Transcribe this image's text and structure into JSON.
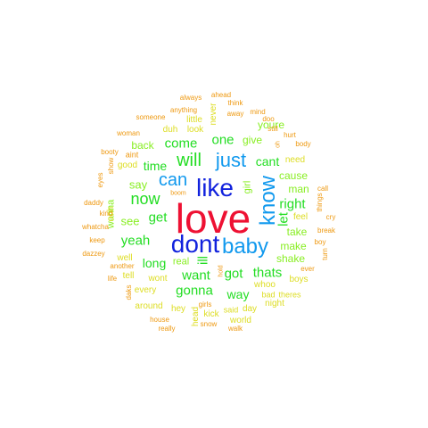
{
  "colors": {
    "red": "#ee1133",
    "blue": "#1122dd",
    "sky": "#1199ee",
    "green": "#22dd22",
    "lime": "#88ee22",
    "yellow": "#dddd22",
    "orange": "#ee9911",
    "dark_orange": "#dd7711"
  },
  "words": [
    {
      "text": "love",
      "color": "red"
    },
    {
      "text": "dont",
      "color": "blue"
    },
    {
      "text": "baby",
      "color": "sky"
    },
    {
      "text": "like",
      "color": "blue"
    },
    {
      "text": "just",
      "color": "sky"
    },
    {
      "text": "know",
      "color": "sky"
    },
    {
      "text": "can",
      "color": "sky"
    },
    {
      "text": "will",
      "color": "green"
    },
    {
      "text": "now",
      "color": "green"
    },
    {
      "text": "come",
      "color": "green"
    },
    {
      "text": "one",
      "color": "green"
    },
    {
      "text": "yeah",
      "color": "green"
    },
    {
      "text": "get",
      "color": "green"
    },
    {
      "text": "gonna",
      "color": "green"
    },
    {
      "text": "want",
      "color": "green"
    },
    {
      "text": "got",
      "color": "green"
    },
    {
      "text": "thats",
      "color": "green"
    },
    {
      "text": "right",
      "color": "green"
    },
    {
      "text": "let",
      "color": "green"
    },
    {
      "text": "ill",
      "color": "green"
    },
    {
      "text": "time",
      "color": "green"
    },
    {
      "text": "long",
      "color": "green"
    },
    {
      "text": "way",
      "color": "green"
    },
    {
      "text": "cant",
      "color": "green"
    },
    {
      "text": "say",
      "color": "lime"
    },
    {
      "text": "see",
      "color": "lime"
    },
    {
      "text": "make",
      "color": "lime"
    },
    {
      "text": "man",
      "color": "lime"
    },
    {
      "text": "give",
      "color": "lime"
    },
    {
      "text": "back",
      "color": "lime"
    },
    {
      "text": "cause",
      "color": "lime"
    },
    {
      "text": "youre",
      "color": "lime"
    },
    {
      "text": "take",
      "color": "lime"
    },
    {
      "text": "shake",
      "color": "lime"
    },
    {
      "text": "wanna",
      "color": "lime"
    },
    {
      "text": "girl",
      "color": "lime"
    },
    {
      "text": "real",
      "color": "lime"
    },
    {
      "text": "well",
      "color": "yellow"
    },
    {
      "text": "tell",
      "color": "yellow"
    },
    {
      "text": "feel",
      "color": "yellow"
    },
    {
      "text": "every",
      "color": "yellow"
    },
    {
      "text": "wont",
      "color": "yellow"
    },
    {
      "text": "need",
      "color": "yellow"
    },
    {
      "text": "whoo",
      "color": "yellow"
    },
    {
      "text": "little",
      "color": "yellow"
    },
    {
      "text": "never",
      "color": "yellow"
    },
    {
      "text": "duh",
      "color": "yellow"
    },
    {
      "text": "look",
      "color": "yellow"
    },
    {
      "text": "good",
      "color": "yellow"
    },
    {
      "text": "ooh",
      "color": "yellow"
    },
    {
      "text": "night",
      "color": "yellow"
    },
    {
      "text": "boys",
      "color": "yellow"
    },
    {
      "text": "around",
      "color": "yellow"
    },
    {
      "text": "hey",
      "color": "yellow"
    },
    {
      "text": "kick",
      "color": "yellow"
    },
    {
      "text": "head",
      "color": "yellow"
    },
    {
      "text": "world",
      "color": "yellow"
    },
    {
      "text": "day",
      "color": "yellow"
    },
    {
      "text": "theres",
      "color": "yellow"
    },
    {
      "text": "bad",
      "color": "yellow"
    },
    {
      "text": "said",
      "color": "yellow"
    },
    {
      "text": "ever",
      "color": "orange"
    },
    {
      "text": "boy",
      "color": "orange"
    },
    {
      "text": "turn",
      "color": "orange"
    },
    {
      "text": "break",
      "color": "orange"
    },
    {
      "text": "cry",
      "color": "orange"
    },
    {
      "text": "call",
      "color": "orange"
    },
    {
      "text": "things",
      "color": "orange"
    },
    {
      "text": "body",
      "color": "orange"
    },
    {
      "text": "hurt",
      "color": "orange"
    },
    {
      "text": "still",
      "color": "orange"
    },
    {
      "text": "doo",
      "color": "orange"
    },
    {
      "text": "mind",
      "color": "orange"
    },
    {
      "text": "away",
      "color": "orange"
    },
    {
      "text": "think",
      "color": "orange"
    },
    {
      "text": "ahead",
      "color": "orange"
    },
    {
      "text": "always",
      "color": "orange"
    },
    {
      "text": "anything",
      "color": "orange"
    },
    {
      "text": "someone",
      "color": "orange"
    },
    {
      "text": "woman",
      "color": "orange"
    },
    {
      "text": "booty",
      "color": "orange"
    },
    {
      "text": "aint",
      "color": "orange"
    },
    {
      "text": "show",
      "color": "orange"
    },
    {
      "text": "eyes",
      "color": "orange"
    },
    {
      "text": "daddy",
      "color": "orange"
    },
    {
      "text": "kind",
      "color": "orange"
    },
    {
      "text": "whatcha",
      "color": "orange"
    },
    {
      "text": "keep",
      "color": "orange"
    },
    {
      "text": "dazzey",
      "color": "orange"
    },
    {
      "text": "another",
      "color": "orange"
    },
    {
      "text": "life",
      "color": "orange"
    },
    {
      "text": "daks",
      "color": "orange"
    },
    {
      "text": "house",
      "color": "orange"
    },
    {
      "text": "really",
      "color": "orange"
    },
    {
      "text": "snow",
      "color": "orange"
    },
    {
      "text": "walk",
      "color": "orange"
    },
    {
      "text": "girls",
      "color": "orange"
    },
    {
      "text": "boom",
      "color": "orange"
    },
    {
      "text": "hold",
      "color": "orange"
    },
    {
      "text": "oh",
      "color": "orange"
    }
  ]
}
